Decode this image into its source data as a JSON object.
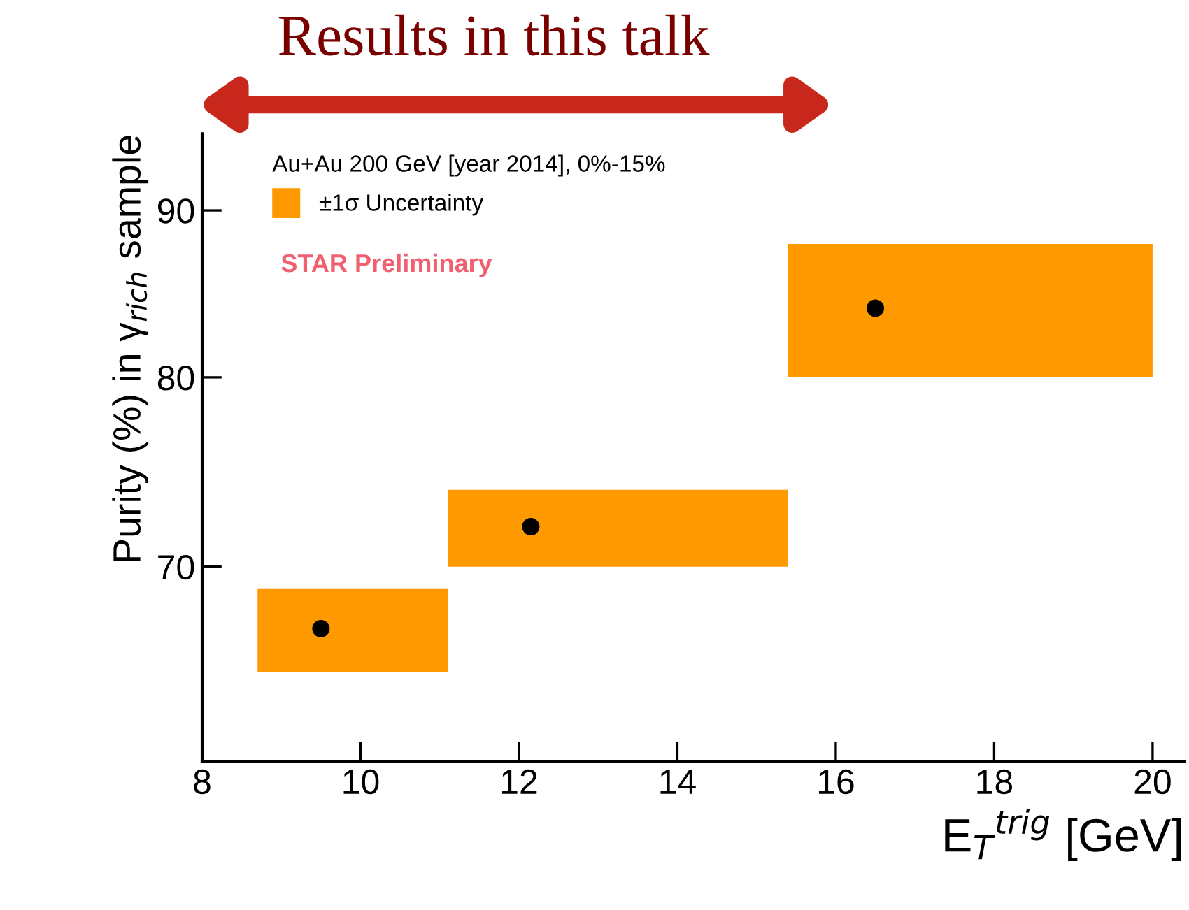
{
  "chart_data": {
    "type": "scatter",
    "title": "Results in this talk",
    "xlabel": "E$_{T}$$^{trig}$ [GeV]",
    "ylabel": "Purity (%) in γ$_{rich}$ sample",
    "legend_title": "Au+Au 200 GeV [year 2014], 0%-15%",
    "annotations": [
      "STAR Preliminary"
    ],
    "x": [
      9.5,
      12.15,
      16.5
    ],
    "series": [
      {
        "type": "histogram",
        "name": "±1σ Uncertainty",
        "color": "#ff9900",
        "bins": [
          8.7,
          11.1,
          15.4,
          20.0
        ],
        "base": [
          65.0,
          70.0,
          80.0
        ],
        "values": [
          3.9,
          3.9,
          7.9
        ]
      },
      {
        "color": "#000000",
        "values": [
          67.0,
          72.0,
          84.0
        ]
      }
    ],
    "marker": "circle",
    "log": "y",
    "xlim": [
      8,
      20.4
    ],
    "xticks": [
      8,
      10,
      12,
      14,
      16,
      18,
      20
    ],
    "ylim": [
      61,
      95
    ],
    "yticks": [
      70,
      80,
      90
    ],
    "legend": "top left",
    "grid": false
  }
}
